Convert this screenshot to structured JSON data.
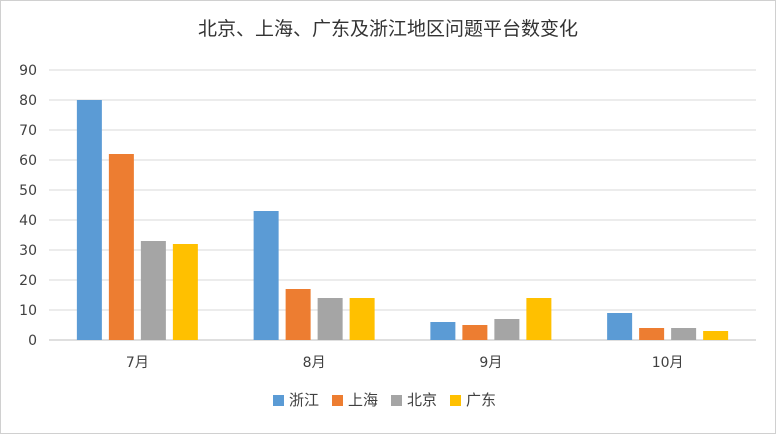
{
  "chart_data": {
    "type": "bar",
    "title": "北京、上海、广东及浙江地区问题平台数变化",
    "xlabel": "",
    "ylabel": "",
    "categories": [
      "7月",
      "8月",
      "9月",
      "10月"
    ],
    "series": [
      {
        "name": "浙江",
        "color": "#5b9bd5",
        "values": [
          80,
          43,
          6,
          9
        ]
      },
      {
        "name": "上海",
        "color": "#ed7d31",
        "values": [
          62,
          17,
          5,
          4
        ]
      },
      {
        "name": "北京",
        "color": "#a5a5a5",
        "values": [
          33,
          14,
          7,
          4
        ]
      },
      {
        "name": "广东",
        "color": "#ffc000",
        "values": [
          32,
          14,
          14,
          3
        ]
      }
    ],
    "ylim": [
      0,
      90
    ],
    "yticks": [
      0,
      10,
      20,
      30,
      40,
      50,
      60,
      70,
      80,
      90
    ],
    "grid": true,
    "legend": "bottom"
  }
}
